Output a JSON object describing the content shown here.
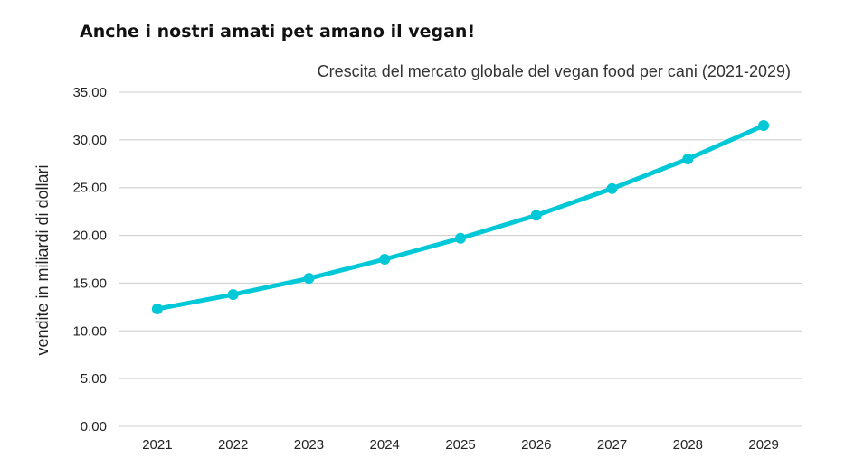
{
  "headline": "Anche i nostri amati pet amano il vegan!",
  "chart_data": {
    "type": "line",
    "title": "Crescita del mercato globale del vegan food per cani  (2021-2029)",
    "xlabel": "",
    "ylabel": "vendite in miliardi di dollari",
    "categories": [
      "2021",
      "2022",
      "2023",
      "2024",
      "2025",
      "2026",
      "2027",
      "2028",
      "2029"
    ],
    "values": [
      12.3,
      13.8,
      15.5,
      17.5,
      19.7,
      22.1,
      24.9,
      28.0,
      31.5
    ],
    "y_ticks": [
      "0.00",
      "5.00",
      "10.00",
      "15.00",
      "20.00",
      "25.00",
      "30.00",
      "35.00"
    ],
    "ylim": [
      0,
      35
    ],
    "grid": true,
    "legend": "none",
    "line_color": "#00c8d7"
  }
}
